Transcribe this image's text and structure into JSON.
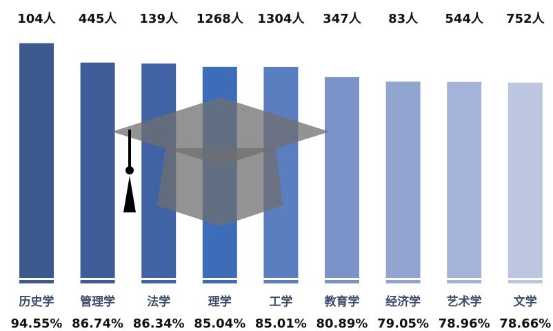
{
  "chart_data": {
    "type": "bar",
    "categories": [
      "历史学",
      "管理学",
      "法学",
      "理学",
      "工学",
      "教育学",
      "经济学",
      "艺术学",
      "文学"
    ],
    "values": [
      94.55,
      86.74,
      86.34,
      85.04,
      85.01,
      80.89,
      79.05,
      78.96,
      78.66
    ],
    "value_labels": [
      "94.55%",
      "86.74%",
      "86.34%",
      "85.04%",
      "85.01%",
      "80.89%",
      "79.05%",
      "78.96%",
      "78.66%"
    ],
    "counts": [
      104,
      445,
      139,
      1268,
      1304,
      347,
      83,
      544,
      752
    ],
    "count_labels": [
      "104人",
      "445人",
      "139人",
      "1268人",
      "1304人",
      "347人",
      "83人",
      "544人",
      "752人"
    ],
    "colors": [
      "#3d5a8f",
      "#3f5c97",
      "#3f63a4",
      "#3d6db8",
      "#5b7ec0",
      "#7b93c8",
      "#92a5d0",
      "#a5b3d8",
      "#bdc6e0"
    ]
  }
}
